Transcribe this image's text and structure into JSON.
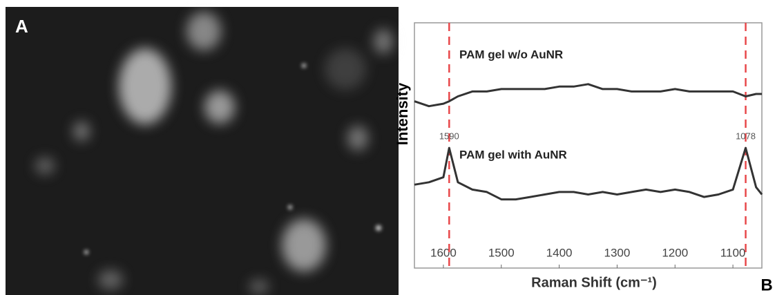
{
  "panel_a": {
    "label": "A"
  },
  "panel_b": {
    "label": "B"
  },
  "chart_data": {
    "type": "line",
    "x_label": "Raman Shift (cm⁻¹)",
    "y_label": "Intensity",
    "x": [
      1650,
      1625,
      1600,
      1590,
      1575,
      1550,
      1525,
      1500,
      1475,
      1450,
      1425,
      1400,
      1375,
      1350,
      1325,
      1300,
      1275,
      1250,
      1225,
      1200,
      1175,
      1150,
      1125,
      1100,
      1078,
      1060,
      1050
    ],
    "series": [
      {
        "name": "PAM gel w/o AuNR",
        "color": "#333333",
        "values": [
          0.68,
          0.66,
          0.67,
          0.68,
          0.7,
          0.72,
          0.72,
          0.73,
          0.73,
          0.73,
          0.73,
          0.74,
          0.74,
          0.75,
          0.73,
          0.73,
          0.72,
          0.72,
          0.72,
          0.73,
          0.72,
          0.72,
          0.72,
          0.72,
          0.7,
          0.71,
          0.71
        ]
      },
      {
        "name": "PAM gel with AuNR",
        "color": "#333333",
        "values": [
          0.34,
          0.35,
          0.37,
          0.49,
          0.35,
          0.32,
          0.31,
          0.28,
          0.28,
          0.29,
          0.3,
          0.31,
          0.31,
          0.3,
          0.31,
          0.3,
          0.31,
          0.32,
          0.31,
          0.32,
          0.31,
          0.29,
          0.3,
          0.32,
          0.49,
          0.33,
          0.3
        ]
      }
    ],
    "vlines": [
      {
        "value": 1590,
        "label": "1590"
      },
      {
        "value": 1078,
        "label": "1078"
      }
    ],
    "vline_color": "#e8474a",
    "xlim": [
      1650,
      1050
    ],
    "xticks": [
      1600,
      1500,
      1400,
      1300,
      1200,
      1100
    ],
    "ylim": [
      0,
      1
    ]
  }
}
